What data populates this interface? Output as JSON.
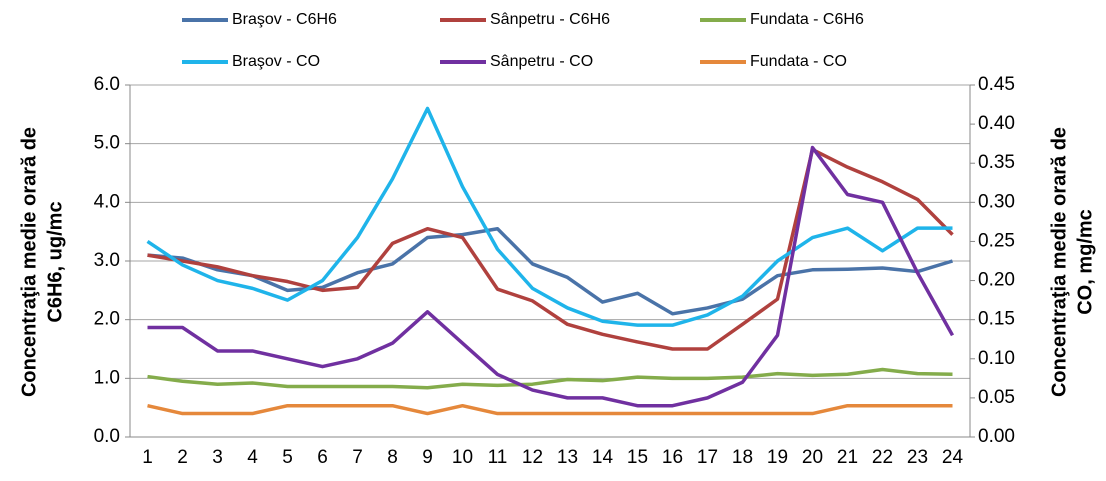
{
  "chart_data": {
    "type": "line",
    "categories": [
      "1",
      "2",
      "3",
      "4",
      "5",
      "6",
      "7",
      "8",
      "9",
      "10",
      "11",
      "12",
      "13",
      "14",
      "15",
      "16",
      "17",
      "18",
      "19",
      "20",
      "21",
      "22",
      "23",
      "24"
    ],
    "y_label": [
      "Concentraţia medie orară de",
      "C6H6, ug/mc"
    ],
    "y2_label": [
      "Concentraţia medie orară de",
      "CO, mg/mc"
    ],
    "ylim": [
      0,
      6
    ],
    "yticks": [
      {
        "value": 0,
        "label": "0.0"
      },
      {
        "value": 1,
        "label": "1.0"
      },
      {
        "value": 2,
        "label": "2.0"
      },
      {
        "value": 3,
        "label": "3.0"
      },
      {
        "value": 4,
        "label": "4.0"
      },
      {
        "value": 5,
        "label": "5.0"
      },
      {
        "value": 6,
        "label": "6.0"
      }
    ],
    "y2lim": [
      0,
      0.45
    ],
    "y2ticks": [
      {
        "value": 0,
        "label": "0.00"
      },
      {
        "value": 0.05,
        "label": "0.05"
      },
      {
        "value": 0.1,
        "label": "0.10"
      },
      {
        "value": 0.15,
        "label": "0.15"
      },
      {
        "value": 0.2,
        "label": "0.20"
      },
      {
        "value": 0.25,
        "label": "0.25"
      },
      {
        "value": 0.3,
        "label": "0.30"
      },
      {
        "value": 0.35,
        "label": "0.35"
      },
      {
        "value": 0.4,
        "label": "0.40"
      },
      {
        "value": 0.45,
        "label": "0.45"
      }
    ],
    "grid": true,
    "legend": "top",
    "series": [
      {
        "name": "Braşov - C6H6",
        "color": "#4a73a8",
        "values": [
          3.1,
          3.05,
          2.85,
          2.75,
          2.5,
          2.55,
          2.8,
          2.95,
          3.4,
          3.45,
          3.55,
          2.95,
          2.72,
          2.3,
          2.45,
          2.1,
          2.2,
          2.35,
          2.75,
          2.85,
          2.86,
          2.88,
          2.82,
          3.0
        ]
      },
      {
        "name": "Sânpetru - C6H6",
        "color": "#b0413e",
        "values": [
          3.1,
          3.0,
          2.9,
          2.75,
          2.65,
          2.5,
          2.55,
          3.3,
          3.55,
          3.4,
          2.52,
          2.32,
          1.92,
          1.75,
          1.62,
          1.5,
          1.5,
          1.92,
          2.35,
          4.9,
          4.6,
          4.35,
          4.05,
          3.45
        ]
      },
      {
        "name": "Fundata - C6H6",
        "color": "#84ac4b",
        "values": [
          1.03,
          0.95,
          0.9,
          0.92,
          0.86,
          0.86,
          0.86,
          0.86,
          0.84,
          0.9,
          0.88,
          0.9,
          0.98,
          0.96,
          1.02,
          1.0,
          1.0,
          1.02,
          1.08,
          1.05,
          1.07,
          1.15,
          1.08,
          1.07
        ]
      },
      {
        "name": "Braşov - CO",
        "color": "#1fb4ea",
        "axis": "y2",
        "values": [
          0.25,
          0.22,
          0.2,
          0.19,
          0.175,
          0.2,
          0.255,
          0.33,
          0.42,
          0.32,
          0.24,
          0.19,
          0.165,
          0.148,
          0.143,
          0.143,
          0.156,
          0.18,
          0.225,
          0.255,
          0.267,
          0.238,
          0.267,
          0.267
        ]
      },
      {
        "name": "Sânpetru - CO",
        "color": "#7030a0",
        "axis": "y2",
        "values": [
          0.14,
          0.14,
          0.11,
          0.11,
          0.1,
          0.09,
          0.1,
          0.12,
          0.16,
          0.12,
          0.08,
          0.06,
          0.05,
          0.05,
          0.04,
          0.04,
          0.05,
          0.07,
          0.13,
          0.37,
          0.31,
          0.3,
          0.21,
          0.13
        ]
      },
      {
        "name": "Fundata - CO",
        "color": "#e5883b",
        "axis": "y2",
        "values": [
          0.04,
          0.03,
          0.03,
          0.03,
          0.04,
          0.04,
          0.04,
          0.04,
          0.03,
          0.04,
          0.03,
          0.03,
          0.03,
          0.03,
          0.03,
          0.03,
          0.03,
          0.03,
          0.03,
          0.03,
          0.04,
          0.04,
          0.04,
          0.04
        ]
      }
    ]
  }
}
